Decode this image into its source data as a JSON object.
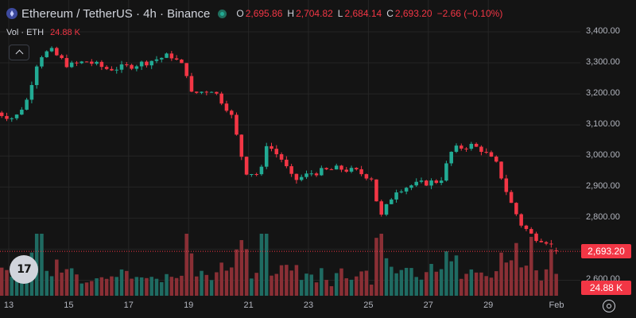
{
  "symbol": {
    "title": "Ethereum / TetherUS · 4h · Binance",
    "ohlc": [
      {
        "key": "O",
        "value": "2,695.86"
      },
      {
        "key": "H",
        "value": "2,704.82"
      },
      {
        "key": "L",
        "value": "2,684.14"
      },
      {
        "key": "C",
        "value": "2,693.20"
      }
    ],
    "change": "−2.66 (−0.10%)"
  },
  "volume_legend": {
    "label": "Vol · ETH",
    "value": "24.88 K"
  },
  "price_axis": {
    "ticks": [
      "3,400.00",
      "3,300.00",
      "3,200.00",
      "3,100.00",
      "3,000.00",
      "2,900.00",
      "2,800.00",
      "2,700.00",
      "2,600.00"
    ],
    "last_price": "2,693.20",
    "volume_tag": "24.88 K"
  },
  "time_axis": {
    "ticks": [
      "13",
      "15",
      "17",
      "19",
      "21",
      "23",
      "25",
      "27",
      "29",
      "Feb"
    ]
  },
  "logo_text": "17",
  "colors": {
    "up": "#22ab94",
    "down": "#f23645",
    "background": "#141414",
    "grid": "#252525"
  },
  "chart_data": {
    "type": "candlestick",
    "interval": "4h",
    "ylim": [
      2550,
      3400
    ],
    "x_range_days": [
      12.6,
      31.4
    ],
    "anchors": [
      {
        "day": 12.6,
        "price": 3140
      },
      {
        "day": 13.2,
        "price": 3120
      },
      {
        "day": 13.6,
        "price": 3180
      },
      {
        "day": 14.0,
        "price": 3320
      },
      {
        "day": 14.4,
        "price": 3340
      },
      {
        "day": 15.0,
        "price": 3290
      },
      {
        "day": 15.6,
        "price": 3305
      },
      {
        "day": 16.3,
        "price": 3280
      },
      {
        "day": 16.8,
        "price": 3285
      },
      {
        "day": 17.5,
        "price": 3300
      },
      {
        "day": 18.4,
        "price": 3325
      },
      {
        "day": 18.9,
        "price": 3280
      },
      {
        "day": 19.1,
        "price": 3200
      },
      {
        "day": 19.8,
        "price": 3215
      },
      {
        "day": 20.4,
        "price": 3140
      },
      {
        "day": 20.9,
        "price": 2950
      },
      {
        "day": 21.4,
        "price": 2940
      },
      {
        "day": 21.6,
        "price": 3040
      },
      {
        "day": 22.1,
        "price": 2990
      },
      {
        "day": 22.5,
        "price": 2920
      },
      {
        "day": 23.1,
        "price": 2945
      },
      {
        "day": 24.0,
        "price": 2960
      },
      {
        "day": 24.6,
        "price": 2950
      },
      {
        "day": 25.1,
        "price": 2930
      },
      {
        "day": 25.4,
        "price": 2800
      },
      {
        "day": 25.9,
        "price": 2890
      },
      {
        "day": 26.4,
        "price": 2905
      },
      {
        "day": 27.0,
        "price": 2915
      },
      {
        "day": 27.4,
        "price": 2920
      },
      {
        "day": 27.8,
        "price": 3020
      },
      {
        "day": 28.4,
        "price": 3035
      },
      {
        "day": 28.8,
        "price": 3020
      },
      {
        "day": 29.3,
        "price": 2970
      },
      {
        "day": 29.7,
        "price": 2860
      },
      {
        "day": 30.1,
        "price": 2780
      },
      {
        "day": 30.5,
        "price": 2740
      },
      {
        "day": 30.9,
        "price": 2730
      },
      {
        "day": 31.3,
        "price": 2693.2
      }
    ],
    "volume_spikes": [
      {
        "day": 14.0,
        "size": 1.0,
        "direction": "up"
      },
      {
        "day": 18.9,
        "size": 1.0,
        "direction": "down"
      },
      {
        "day": 20.9,
        "size": 0.75,
        "direction": "down"
      },
      {
        "day": 21.5,
        "size": 1.0,
        "direction": "up"
      },
      {
        "day": 25.4,
        "size": 1.0,
        "direction": "down"
      },
      {
        "day": 27.9,
        "size": 0.65,
        "direction": "up"
      },
      {
        "day": 29.9,
        "size": 0.85,
        "direction": "down"
      },
      {
        "day": 30.4,
        "size": 0.95,
        "direction": "down"
      },
      {
        "day": 31.1,
        "size": 0.75,
        "direction": "up"
      }
    ],
    "last_close": 2693.2,
    "last_volume": "24.88 K"
  }
}
